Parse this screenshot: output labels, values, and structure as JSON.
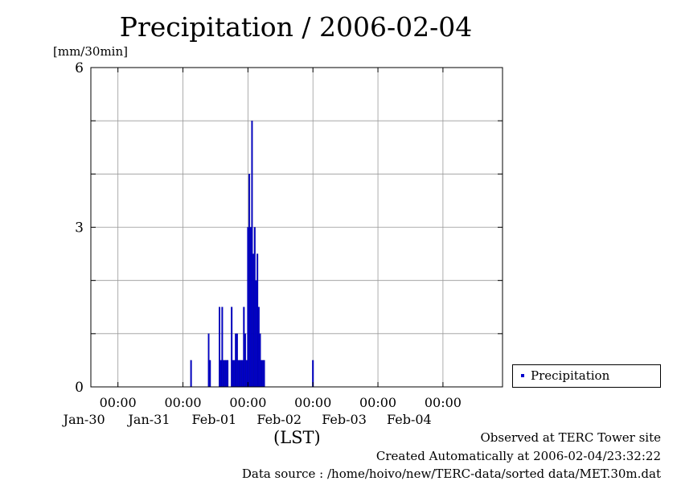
{
  "chart_data": {
    "type": "bar",
    "title": "Precipitation / 2006-02-04",
    "ylabel": "[mm/30min]",
    "xlabel": "(LST)",
    "ylim": [
      0,
      6
    ],
    "yticks": [
      "0",
      "3",
      "6"
    ],
    "xlim": [
      "2006-01-29T14:00",
      "2006-02-04T22:00"
    ],
    "xticks": [
      {
        "time": "00:00",
        "date": "Jan-30"
      },
      {
        "time": "00:00",
        "date": "Jan-31"
      },
      {
        "time": "00:00",
        "date": "Feb-01"
      },
      {
        "time": "00:00",
        "date": "Feb-02"
      },
      {
        "time": "00:00",
        "date": "Feb-03"
      },
      {
        "time": "00:00",
        "date": "Feb-04"
      }
    ],
    "grid": true,
    "legend_position": "bottom-right, outside plot",
    "series": [
      {
        "name": "Precipitation",
        "color": "#0000cc",
        "x": [
          "2006-01-31T03:00",
          "2006-01-31T09:30",
          "2006-01-31T10:00",
          "2006-01-31T13:30",
          "2006-01-31T14:00",
          "2006-01-31T14:30",
          "2006-01-31T15:00",
          "2006-01-31T15:30",
          "2006-01-31T16:00",
          "2006-01-31T16:30",
          "2006-01-31T18:00",
          "2006-01-31T18:30",
          "2006-01-31T19:00",
          "2006-01-31T19:30",
          "2006-01-31T20:00",
          "2006-01-31T20:30",
          "2006-01-31T21:00",
          "2006-01-31T21:30",
          "2006-01-31T22:00",
          "2006-01-31T22:30",
          "2006-01-31T23:00",
          "2006-01-31T23:30",
          "2006-02-01T00:00",
          "2006-02-01T00:30",
          "2006-02-01T01:00",
          "2006-02-01T01:30",
          "2006-02-01T02:00",
          "2006-02-01T02:30",
          "2006-02-01T03:00",
          "2006-02-01T03:30",
          "2006-02-01T04:00",
          "2006-02-01T04:30",
          "2006-02-01T05:00",
          "2006-02-01T05:30",
          "2006-02-01T06:00",
          "2006-02-02T00:00"
        ],
        "values": [
          0.5,
          1.0,
          0.5,
          1.5,
          0.5,
          1.5,
          0.5,
          0.5,
          0.5,
          0.5,
          1.5,
          0.5,
          0.5,
          1.0,
          1.0,
          0.5,
          0.5,
          0.5,
          0.5,
          1.5,
          1.0,
          0.5,
          3.0,
          4.0,
          3.0,
          5.0,
          2.5,
          3.0,
          2.0,
          2.5,
          1.5,
          1.0,
          0.5,
          0.5,
          0.5,
          0.5
        ]
      }
    ]
  },
  "notes": {
    "observed": "Observed at TERC Tower site",
    "created": "Created Automatically at 2006-02-04/23:32:22",
    "source": "Data source : /home/hoivo/new/TERC-data/sorted  data/MET.30m.dat"
  }
}
